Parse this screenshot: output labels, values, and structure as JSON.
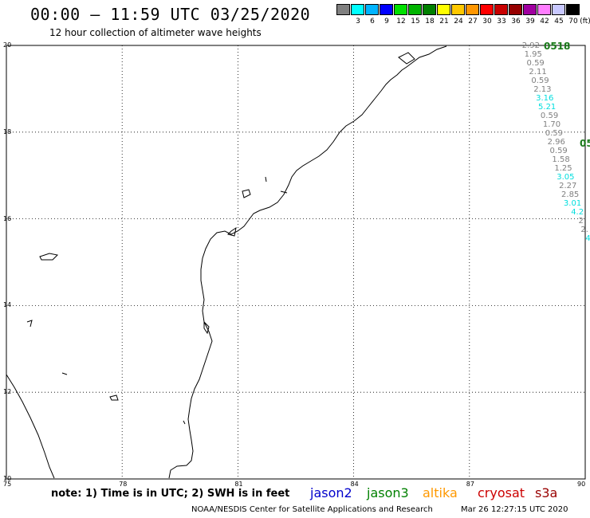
{
  "header": {
    "title": "00:00 – 11:59 UTC 03/25/2020",
    "subtitle": "12 hour collection of altimeter wave heights"
  },
  "colorbar": {
    "unit": "(ft)",
    "swatches": [
      "#808080",
      "#00ffff",
      "#00b4ff",
      "#0000ff",
      "#00e000",
      "#00b400",
      "#008000",
      "#ffff00",
      "#ffc800",
      "#ff9600",
      "#ff0000",
      "#c80000",
      "#960000",
      "#a000a0",
      "#ff7dff",
      "#c8c8ff",
      "#000000"
    ],
    "labels": [
      "3",
      "6",
      "9",
      "12",
      "15",
      "18",
      "21",
      "24",
      "27",
      "30",
      "33",
      "36",
      "39",
      "42",
      "45",
      "70"
    ]
  },
  "map": {
    "lon_ticks": [
      "75",
      "78",
      "81",
      "84",
      "87",
      "90"
    ],
    "lat_ticks": [
      "20",
      "18",
      "16",
      "14",
      "12",
      "10"
    ],
    "extent": {
      "lon": [
        75,
        90
      ],
      "lat": [
        10,
        20
      ]
    },
    "grid": "dotted",
    "coastline_color": "#000000"
  },
  "passes": [
    {
      "label": "0518",
      "color": "#1a7a1a"
    },
    {
      "label": "05",
      "color": "#1a7a1a"
    }
  ],
  "wave_heights": [
    {
      "value": "2.92",
      "color": "#808080"
    },
    {
      "value": "1.95",
      "color": "#808080"
    },
    {
      "value": "0.59",
      "color": "#808080"
    },
    {
      "value": "2.11",
      "color": "#808080"
    },
    {
      "value": "0.59",
      "color": "#808080"
    },
    {
      "value": "2.13",
      "color": "#808080"
    },
    {
      "value": "3.16",
      "color": "#00dede"
    },
    {
      "value": "5.21",
      "color": "#00dede"
    },
    {
      "value": "0.59",
      "color": "#808080"
    },
    {
      "value": "1.70",
      "color": "#808080"
    },
    {
      "value": "0.59",
      "color": "#808080"
    },
    {
      "value": "2.96",
      "color": "#808080"
    },
    {
      "value": "0.59",
      "color": "#808080"
    },
    {
      "value": "1.58",
      "color": "#808080"
    },
    {
      "value": "1.25",
      "color": "#808080"
    },
    {
      "value": "3.05",
      "color": "#00dede"
    },
    {
      "value": "2.27",
      "color": "#808080"
    },
    {
      "value": "2.85",
      "color": "#808080"
    },
    {
      "value": "3.01",
      "color": "#00dede"
    },
    {
      "value": "4.2",
      "color": "#00dede"
    },
    {
      "value": "2.",
      "color": "#808080"
    },
    {
      "value": "2.",
      "color": "#808080"
    },
    {
      "value": "4",
      "color": "#00dede"
    }
  ],
  "footer": {
    "note": "note: 1) Time is in UTC; 2) SWH is in feet",
    "missions": [
      {
        "name": "jason2",
        "color": "#0000cc"
      },
      {
        "name": "jason3",
        "color": "#008000"
      },
      {
        "name": "altika",
        "color": "#ff9900"
      },
      {
        "name": "cryosat",
        "color": "#cc0000"
      },
      {
        "name": "s3a",
        "color": "#990000"
      }
    ],
    "credit": "NOAA/NESDIS Center for Satellite Applications and Research",
    "timestamp": "Mar 26 12:27:15 UTC 2020"
  }
}
